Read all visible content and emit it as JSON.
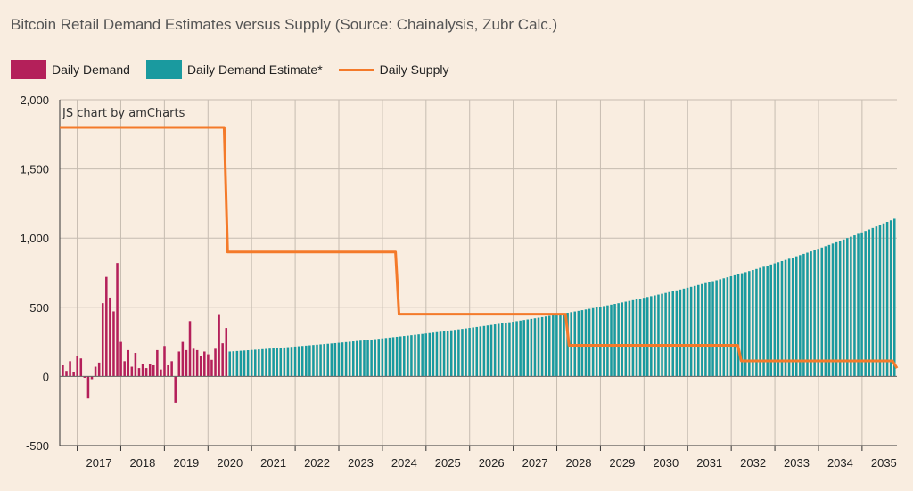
{
  "colors": {
    "background": "#f9ede0",
    "demand": "#b4205a",
    "estimate": "#1a9a9f",
    "supply": "#f47a2a",
    "grid": "#c6bcb1",
    "axis": "#333333"
  },
  "credit": "JS chart by amCharts",
  "chart_data": {
    "type": "bar",
    "title": "Bitcoin Retail Demand Estimates versus Supply (Source: Chainalysis, Zubr Calc.)",
    "xlabel": "",
    "ylabel": "",
    "ylim": [
      -500,
      2000
    ],
    "yticks": [
      "2,000",
      "1,500",
      "1,000",
      "500",
      "0",
      "-500"
    ],
    "ytick_values": [
      2000,
      1500,
      1000,
      500,
      0,
      -500
    ],
    "xlim": [
      2016.6,
      2035.8
    ],
    "xticks": [
      "2017",
      "2018",
      "2019",
      "2020",
      "2021",
      "2022",
      "2023",
      "2024",
      "2025",
      "2026",
      "2027",
      "2028",
      "2029",
      "2030",
      "2031",
      "2032",
      "2033",
      "2034",
      "2035"
    ],
    "grid": true,
    "legend_position": "top-left",
    "series": [
      {
        "name": "Daily Demand",
        "kind": "bar",
        "color": "#b4205a",
        "start": 2016.67,
        "step": 0.0833,
        "values": [
          80,
          40,
          110,
          30,
          150,
          130,
          -10,
          -160,
          -20,
          70,
          100,
          530,
          720,
          570,
          470,
          820,
          250,
          110,
          190,
          70,
          170,
          60,
          90,
          60,
          90,
          80,
          190,
          50,
          220,
          80,
          110,
          -190,
          180,
          250,
          190,
          400,
          200,
          190,
          150,
          180,
          160,
          120,
          200,
          450,
          240,
          350
        ]
      },
      {
        "name": "Daily Demand Estimate*",
        "kind": "bar",
        "color": "#1a9a9f",
        "start": 2020.5,
        "end": 2035.75,
        "step": 0.0833,
        "start_value": 180,
        "end_value": 1140
      },
      {
        "name": "Daily Supply",
        "kind": "step-line",
        "color": "#f47a2a",
        "points": [
          {
            "x": 2016.6,
            "y": 1800
          },
          {
            "x": 2020.37,
            "y": 1800
          },
          {
            "x": 2020.45,
            "y": 900
          },
          {
            "x": 2024.3,
            "y": 900
          },
          {
            "x": 2024.38,
            "y": 450
          },
          {
            "x": 2028.2,
            "y": 450
          },
          {
            "x": 2028.28,
            "y": 225
          },
          {
            "x": 2032.15,
            "y": 225
          },
          {
            "x": 2032.23,
            "y": 112
          },
          {
            "x": 2035.7,
            "y": 112
          },
          {
            "x": 2035.8,
            "y": 60
          }
        ]
      }
    ]
  }
}
